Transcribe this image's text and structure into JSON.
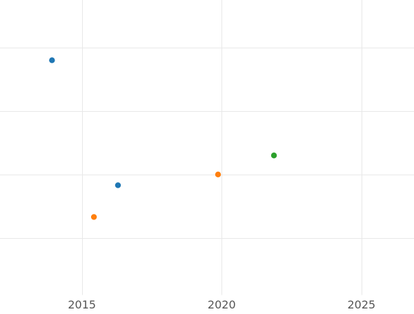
{
  "chart_data": {
    "type": "scatter",
    "title": "",
    "xlabel": "",
    "ylabel": "",
    "x_ticks": [
      2015,
      2020,
      2025
    ],
    "x_tick_labels": [
      "2015",
      "2020",
      "2025"
    ],
    "y_ticks": [
      1,
      2,
      3,
      4
    ],
    "y_tick_labels": [],
    "xlim": [
      2012.07,
      2026.88
    ],
    "ylim": [
      0.1,
      4.75
    ],
    "grid": true,
    "legend": "none",
    "series": [
      {
        "color": "#1f77b4",
        "points": [
          {
            "x": 2013.93,
            "y": 3.8
          },
          {
            "x": 2016.29,
            "y": 1.83
          }
        ]
      },
      {
        "color": "#ff7f0e",
        "points": [
          {
            "x": 2015.43,
            "y": 1.33
          },
          {
            "x": 2019.87,
            "y": 2.0
          }
        ]
      },
      {
        "color": "#2ca02c",
        "points": [
          {
            "x": 2021.87,
            "y": 2.3
          }
        ]
      }
    ]
  }
}
